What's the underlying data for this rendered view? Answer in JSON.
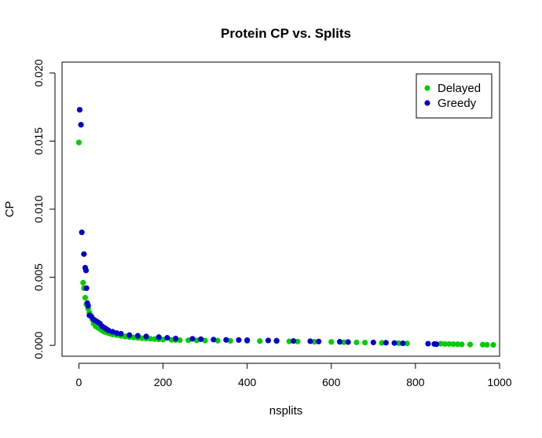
{
  "chart_data": {
    "type": "scatter",
    "title": "Protein CP vs. Splits",
    "xlabel": "nsplits",
    "ylabel": "CP",
    "xlim": [
      -40,
      1000
    ],
    "ylim": [
      -0.0008,
      0.0208
    ],
    "x_ticks": [
      0,
      200,
      400,
      600,
      800,
      1000
    ],
    "x_tick_labels": [
      "0",
      "200",
      "400",
      "600",
      "800",
      "1000"
    ],
    "y_ticks": [
      0.0,
      0.005,
      0.01,
      0.015,
      0.02
    ],
    "y_tick_labels": [
      "0.000",
      "0.005",
      "0.010",
      "0.015",
      "0.020"
    ],
    "legend": {
      "position": "top-right",
      "entries": [
        "Delayed",
        "Greedy"
      ]
    },
    "series": [
      {
        "name": "Delayed",
        "color": "#00cd00",
        "points": [
          [
            0,
            0.0149
          ],
          [
            10,
            0.0046
          ],
          [
            12,
            0.0042
          ],
          [
            15,
            0.0035
          ],
          [
            18,
            0.003
          ],
          [
            22,
            0.0027
          ],
          [
            25,
            0.0024
          ],
          [
            28,
            0.0022
          ],
          [
            32,
            0.0019
          ],
          [
            35,
            0.0016
          ],
          [
            40,
            0.0014
          ],
          [
            45,
            0.0013
          ],
          [
            50,
            0.0012
          ],
          [
            55,
            0.0011
          ],
          [
            60,
            0.001
          ],
          [
            65,
            0.00095
          ],
          [
            70,
            0.0009
          ],
          [
            75,
            0.00085
          ],
          [
            80,
            0.0008
          ],
          [
            90,
            0.00075
          ],
          [
            100,
            0.0007
          ],
          [
            110,
            0.00065
          ],
          [
            120,
            0.0006
          ],
          [
            130,
            0.00058
          ],
          [
            140,
            0.00055
          ],
          [
            150,
            0.00052
          ],
          [
            160,
            0.0005
          ],
          [
            170,
            0.00048
          ],
          [
            180,
            0.00046
          ],
          [
            190,
            0.00044
          ],
          [
            200,
            0.00042
          ],
          [
            220,
            0.0004
          ],
          [
            230,
            0.00039
          ],
          [
            240,
            0.00038
          ],
          [
            260,
            0.00037
          ],
          [
            280,
            0.00036
          ],
          [
            300,
            0.00035
          ],
          [
            330,
            0.00034
          ],
          [
            360,
            0.00033
          ],
          [
            400,
            0.00032
          ],
          [
            430,
            0.00031
          ],
          [
            470,
            0.0003
          ],
          [
            500,
            0.00029
          ],
          [
            520,
            0.00028
          ],
          [
            560,
            0.00026
          ],
          [
            600,
            0.00025
          ],
          [
            630,
            0.00023
          ],
          [
            660,
            0.00021
          ],
          [
            680,
            0.0002
          ],
          [
            720,
            0.00018
          ],
          [
            760,
            0.00016
          ],
          [
            780,
            0.00014
          ],
          [
            860,
            0.00012
          ],
          [
            870,
            0.0001
          ],
          [
            880,
            0.0001
          ],
          [
            890,
            9e-05
          ],
          [
            900,
            8e-05
          ],
          [
            910,
            7e-05
          ],
          [
            930,
            6e-05
          ],
          [
            960,
            5e-05
          ],
          [
            970,
            4e-05
          ],
          [
            985,
            3e-05
          ]
        ]
      },
      {
        "name": "Greedy",
        "color": "#0000cd",
        "points": [
          [
            2,
            0.0173
          ],
          [
            5,
            0.0162
          ],
          [
            7,
            0.0083
          ],
          [
            12,
            0.0067
          ],
          [
            15,
            0.0057
          ],
          [
            17,
            0.0055
          ],
          [
            18,
            0.0042
          ],
          [
            20,
            0.0031
          ],
          [
            22,
            0.0029
          ],
          [
            25,
            0.0022
          ],
          [
            30,
            0.0021
          ],
          [
            35,
            0.0019
          ],
          [
            40,
            0.0018
          ],
          [
            45,
            0.0017
          ],
          [
            50,
            0.0016
          ],
          [
            55,
            0.0014
          ],
          [
            60,
            0.0013
          ],
          [
            65,
            0.0012
          ],
          [
            70,
            0.0011
          ],
          [
            80,
            0.001
          ],
          [
            90,
            0.0009
          ],
          [
            100,
            0.00085
          ],
          [
            120,
            0.00075
          ],
          [
            140,
            0.0007
          ],
          [
            160,
            0.00065
          ],
          [
            190,
            0.0006
          ],
          [
            210,
            0.00055
          ],
          [
            230,
            0.0005
          ],
          [
            270,
            0.00048
          ],
          [
            290,
            0.00045
          ],
          [
            320,
            0.00042
          ],
          [
            350,
            0.0004
          ],
          [
            380,
            0.00039
          ],
          [
            400,
            0.00038
          ],
          [
            450,
            0.00036
          ],
          [
            470,
            0.00034
          ],
          [
            510,
            0.00032
          ],
          [
            550,
            0.0003
          ],
          [
            570,
            0.00028
          ],
          [
            620,
            0.00026
          ],
          [
            640,
            0.00024
          ],
          [
            700,
            0.00021
          ],
          [
            730,
            0.00019
          ],
          [
            750,
            0.00017
          ],
          [
            770,
            0.00015
          ],
          [
            830,
            0.00012
          ],
          [
            845,
            0.0001
          ],
          [
            850,
            8e-05
          ]
        ]
      }
    ]
  }
}
